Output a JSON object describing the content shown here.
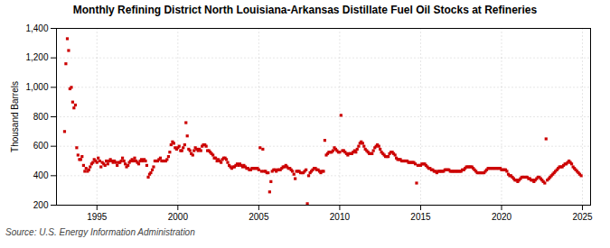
{
  "chart_data": {
    "type": "scatter",
    "title": "Monthly Refining District North Louisiana-Arkansas Distillate Fuel Oil Stocks at Refineries",
    "ylabel": "Thousand Barrels",
    "source": "Source: U.S. Energy Information Administration",
    "color": "#cc0000",
    "marker": "square",
    "grid": true,
    "xlim": [
      1992.5,
      2025.5
    ],
    "xticks": [
      1995,
      2000,
      2005,
      2010,
      2015,
      2020,
      2025
    ],
    "ylim": [
      200,
      1400
    ],
    "yticks": [
      200,
      400,
      600,
      800,
      {
        "value": 1000,
        "label": "1,000"
      },
      {
        "value": 1200,
        "label": "1,200"
      },
      {
        "value": 1400,
        "label": "1,400"
      }
    ],
    "x": [
      1993.0,
      1993.08,
      1993.17,
      1993.25,
      1993.33,
      1993.42,
      1993.5,
      1993.58,
      1993.67,
      1993.75,
      1993.83,
      1993.92,
      1994.0,
      1994.08,
      1994.17,
      1994.25,
      1994.33,
      1994.42,
      1994.5,
      1994.58,
      1994.67,
      1994.75,
      1994.83,
      1994.92,
      1995.0,
      1995.08,
      1995.17,
      1995.25,
      1995.33,
      1995.42,
      1995.5,
      1995.58,
      1995.67,
      1995.75,
      1995.83,
      1995.92,
      1996.0,
      1996.08,
      1996.17,
      1996.25,
      1996.33,
      1996.42,
      1996.5,
      1996.58,
      1996.67,
      1996.75,
      1996.83,
      1996.92,
      1997.0,
      1997.08,
      1997.17,
      1997.25,
      1997.33,
      1997.42,
      1997.5,
      1997.58,
      1997.67,
      1997.75,
      1997.83,
      1997.92,
      1998.0,
      1998.08,
      1998.17,
      1998.25,
      1998.33,
      1998.42,
      1998.5,
      1998.58,
      1998.67,
      1998.75,
      1998.83,
      1998.92,
      1999.0,
      1999.08,
      1999.17,
      1999.25,
      1999.33,
      1999.42,
      1999.5,
      1999.58,
      1999.67,
      1999.75,
      1999.83,
      1999.92,
      2000.0,
      2000.08,
      2000.17,
      2000.25,
      2000.33,
      2000.42,
      2000.5,
      2000.58,
      2000.67,
      2000.75,
      2000.83,
      2000.92,
      2001.0,
      2001.08,
      2001.17,
      2001.25,
      2001.33,
      2001.42,
      2001.5,
      2001.58,
      2001.67,
      2001.75,
      2001.83,
      2001.92,
      2002.0,
      2002.08,
      2002.17,
      2002.25,
      2002.33,
      2002.42,
      2002.5,
      2002.58,
      2002.67,
      2002.75,
      2002.83,
      2002.92,
      2003.0,
      2003.08,
      2003.17,
      2003.25,
      2003.33,
      2003.42,
      2003.5,
      2003.58,
      2003.67,
      2003.75,
      2003.83,
      2003.92,
      2004.0,
      2004.08,
      2004.17,
      2004.25,
      2004.33,
      2004.42,
      2004.5,
      2004.58,
      2004.67,
      2004.75,
      2004.83,
      2004.92,
      2005.0,
      2005.08,
      2005.17,
      2005.25,
      2005.33,
      2005.42,
      2005.5,
      2005.58,
      2005.67,
      2005.75,
      2005.83,
      2005.92,
      2006.0,
      2006.08,
      2006.17,
      2006.25,
      2006.33,
      2006.42,
      2006.5,
      2006.58,
      2006.67,
      2006.75,
      2006.83,
      2006.92,
      2007.0,
      2007.08,
      2007.17,
      2007.25,
      2007.33,
      2007.42,
      2007.5,
      2007.58,
      2007.67,
      2007.75,
      2007.83,
      2007.92,
      2008.0,
      2008.08,
      2008.17,
      2008.25,
      2008.33,
      2008.42,
      2008.5,
      2008.58,
      2008.67,
      2008.75,
      2008.83,
      2008.92,
      2009.0,
      2009.08,
      2009.17,
      2009.25,
      2009.33,
      2009.42,
      2009.5,
      2009.58,
      2009.67,
      2009.75,
      2009.83,
      2009.92,
      2010.0,
      2010.08,
      2010.17,
      2010.25,
      2010.33,
      2010.42,
      2010.5,
      2010.58,
      2010.67,
      2010.75,
      2010.83,
      2010.92,
      2011.0,
      2011.08,
      2011.17,
      2011.25,
      2011.33,
      2011.42,
      2011.5,
      2011.58,
      2011.67,
      2011.75,
      2011.83,
      2011.92,
      2012.0,
      2012.08,
      2012.17,
      2012.25,
      2012.33,
      2012.42,
      2012.5,
      2012.58,
      2012.67,
      2012.75,
      2012.83,
      2012.92,
      2013.0,
      2013.08,
      2013.17,
      2013.25,
      2013.33,
      2013.42,
      2013.5,
      2013.58,
      2013.67,
      2013.75,
      2013.83,
      2013.92,
      2014.0,
      2014.08,
      2014.17,
      2014.25,
      2014.33,
      2014.42,
      2014.5,
      2014.58,
      2014.67,
      2014.75,
      2014.83,
      2014.92,
      2015.0,
      2015.08,
      2015.17,
      2015.25,
      2015.33,
      2015.42,
      2015.5,
      2015.58,
      2015.67,
      2015.75,
      2015.83,
      2015.92,
      2016.0,
      2016.08,
      2016.17,
      2016.25,
      2016.33,
      2016.42,
      2016.5,
      2016.58,
      2016.67,
      2016.75,
      2016.83,
      2016.92,
      2017.0,
      2017.08,
      2017.17,
      2017.25,
      2017.33,
      2017.42,
      2017.5,
      2017.58,
      2017.67,
      2017.75,
      2017.83,
      2017.92,
      2018.0,
      2018.08,
      2018.17,
      2018.25,
      2018.33,
      2018.42,
      2018.5,
      2018.58,
      2018.67,
      2018.75,
      2018.83,
      2018.92,
      2019.0,
      2019.08,
      2019.17,
      2019.25,
      2019.33,
      2019.42,
      2019.5,
      2019.58,
      2019.67,
      2019.75,
      2019.83,
      2019.92,
      2020.0,
      2020.08,
      2020.17,
      2020.25,
      2020.33,
      2020.42,
      2020.5,
      2020.58,
      2020.67,
      2020.75,
      2020.83,
      2020.92,
      2021.0,
      2021.08,
      2021.17,
      2021.25,
      2021.33,
      2021.42,
      2021.5,
      2021.58,
      2021.67,
      2021.75,
      2021.83,
      2021.92,
      2022.0,
      2022.08,
      2022.17,
      2022.25,
      2022.33,
      2022.42,
      2022.5,
      2022.58,
      2022.67,
      2022.75,
      2022.83,
      2022.92,
      2023.0,
      2023.08,
      2023.17,
      2023.25,
      2023.33,
      2023.42,
      2023.5,
      2023.58,
      2023.67,
      2023.75,
      2023.83,
      2023.92,
      2024.0,
      2024.08,
      2024.17,
      2024.25,
      2024.33,
      2024.42,
      2024.5,
      2024.58,
      2024.67,
      2024.75,
      2024.83,
      2024.92
    ],
    "values": [
      700,
      1160,
      1330,
      1250,
      990,
      1000,
      900,
      860,
      880,
      590,
      540,
      510,
      510,
      530,
      470,
      430,
      450,
      430,
      440,
      460,
      480,
      490,
      510,
      500,
      490,
      520,
      500,
      460,
      490,
      480,
      470,
      500,
      480,
      500,
      510,
      500,
      490,
      500,
      490,
      470,
      490,
      490,
      500,
      520,
      500,
      480,
      460,
      470,
      490,
      500,
      510,
      500,
      520,
      500,
      490,
      480,
      500,
      510,
      500,
      510,
      500,
      470,
      390,
      410,
      420,
      440,
      460,
      500,
      500,
      500,
      510,
      520,
      500,
      500,
      500,
      500,
      510,
      530,
      560,
      610,
      630,
      620,
      590,
      580,
      590,
      600,
      570,
      570,
      590,
      610,
      760,
      670,
      580,
      570,
      550,
      540,
      570,
      590,
      580,
      570,
      580,
      570,
      600,
      610,
      610,
      600,
      570,
      570,
      560,
      550,
      540,
      520,
      520,
      500,
      510,
      500,
      490,
      510,
      520,
      520,
      510,
      490,
      470,
      460,
      450,
      460,
      460,
      470,
      480,
      470,
      480,
      470,
      460,
      470,
      460,
      450,
      450,
      440,
      440,
      450,
      450,
      450,
      450,
      450,
      440,
      590,
      430,
      580,
      430,
      430,
      420,
      420,
      290,
      360,
      430,
      440,
      440,
      430,
      440,
      440,
      440,
      450,
      460,
      460,
      470,
      460,
      450,
      450,
      440,
      430,
      410,
      380,
      430,
      430,
      430,
      420,
      420,
      420,
      430,
      440,
      210,
      400,
      420,
      430,
      440,
      450,
      450,
      440,
      440,
      430,
      420,
      430,
      430,
      640,
      540,
      550,
      560,
      560,
      560,
      570,
      590,
      580,
      570,
      560,
      560,
      810,
      570,
      570,
      560,
      550,
      540,
      550,
      550,
      550,
      560,
      570,
      560,
      580,
      600,
      620,
      630,
      620,
      600,
      580,
      570,
      560,
      550,
      550,
      550,
      570,
      590,
      600,
      610,
      600,
      580,
      560,
      550,
      540,
      530,
      530,
      530,
      550,
      560,
      560,
      550,
      540,
      520,
      510,
      510,
      510,
      500,
      500,
      500,
      500,
      500,
      490,
      490,
      490,
      490,
      490,
      480,
      350,
      470,
      470,
      470,
      480,
      480,
      480,
      470,
      460,
      450,
      450,
      440,
      440,
      430,
      430,
      420,
      430,
      430,
      430,
      430,
      430,
      440,
      440,
      440,
      440,
      430,
      430,
      430,
      430,
      430,
      430,
      430,
      430,
      430,
      440,
      440,
      450,
      460,
      460,
      460,
      460,
      460,
      450,
      440,
      430,
      420,
      420,
      420,
      420,
      420,
      420,
      430,
      440,
      450,
      450,
      450,
      450,
      450,
      450,
      450,
      450,
      450,
      450,
      440,
      440,
      440,
      440,
      430,
      410,
      400,
      400,
      390,
      380,
      370,
      370,
      360,
      370,
      380,
      390,
      390,
      390,
      390,
      390,
      380,
      380,
      370,
      370,
      360,
      370,
      380,
      390,
      390,
      380,
      370,
      360,
      350,
      650,
      370,
      380,
      390,
      400,
      410,
      420,
      430,
      440,
      450,
      460,
      460,
      460,
      470,
      480,
      480,
      490,
      500,
      490,
      480,
      460,
      450,
      440,
      430,
      420,
      410,
      400
    ]
  }
}
